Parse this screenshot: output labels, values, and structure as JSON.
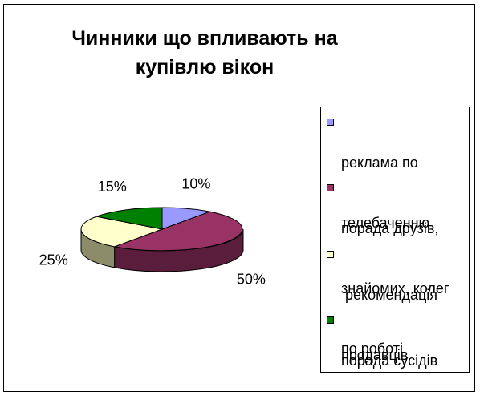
{
  "chart_data": {
    "type": "pie",
    "title_lines": [
      "Чинники що впливають на",
      "купівлю вікон"
    ],
    "categories": [
      "реклама по телебаченню",
      "порада друзів, знайомих, колег по роботі",
      " рекомендація продавців",
      "порада сусідів"
    ],
    "legend_lines": [
      [
        "реклама по",
        "телебаченню"
      ],
      [
        "порада друзів,",
        "знайомих, колег",
        "по роботі"
      ],
      [
        " рекомендація",
        "продавців"
      ],
      [
        "порада сусідів"
      ]
    ],
    "values": [
      10,
      50,
      25,
      15
    ],
    "data_labels": [
      "10%",
      "50%",
      "25%",
      "15%"
    ],
    "colors": [
      "#9999FF",
      "#993366",
      "#FFFFCC",
      "#008000"
    ],
    "side_colors": [
      "#6666B0",
      "#5A1E3C",
      "#8C8C6A",
      "#004D00"
    ],
    "legend_position": "right",
    "style": "3d-pie"
  }
}
